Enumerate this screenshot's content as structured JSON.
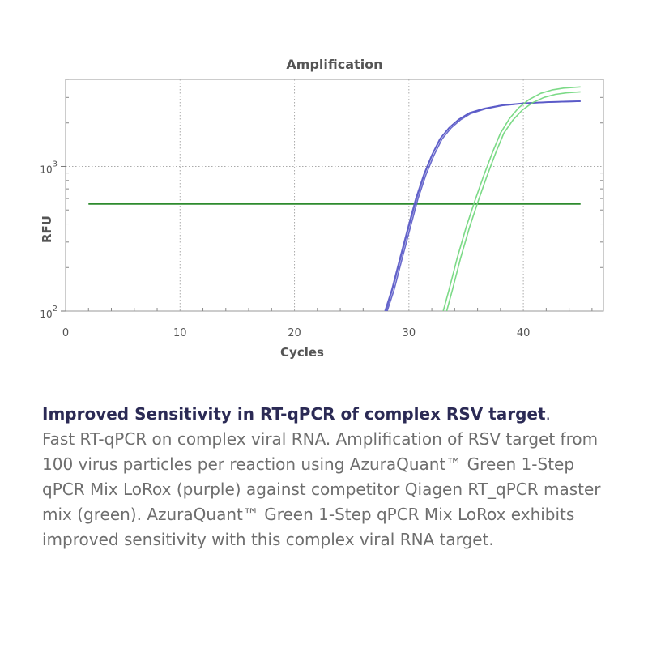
{
  "chart_data": {
    "type": "line",
    "title": "Amplification",
    "xlabel": "Cycles",
    "ylabel": "RFU",
    "xlim": [
      0,
      47
    ],
    "ylim": [
      100,
      4000
    ],
    "yscale": "log",
    "x_ticks": [
      0,
      10,
      20,
      30,
      40
    ],
    "y_ticks": [
      {
        "base": "10",
        "exp": "2",
        "value": 100
      },
      {
        "base": "10",
        "exp": "3",
        "value": 1000
      }
    ],
    "grid": true,
    "threshold": {
      "value": 550,
      "x_start": 2,
      "x_end": 45,
      "color": "#2e8b2e"
    },
    "series_colors": {
      "purple": "#5a5ac8",
      "green": "#6ed67a"
    },
    "series": [
      {
        "group": "purple",
        "points": [
          [
            27.9,
            100
          ],
          [
            28.5,
            140
          ],
          [
            29.2,
            230
          ],
          [
            30.0,
            400
          ],
          [
            30.6,
            600
          ],
          [
            31.3,
            880
          ],
          [
            32.0,
            1200
          ],
          [
            32.7,
            1550
          ],
          [
            33.5,
            1850
          ],
          [
            34.3,
            2100
          ],
          [
            35.2,
            2320
          ],
          [
            36.5,
            2500
          ],
          [
            38.0,
            2640
          ],
          [
            40.0,
            2730
          ],
          [
            42.0,
            2780
          ],
          [
            44.0,
            2810
          ],
          [
            45.0,
            2820
          ]
        ]
      },
      {
        "group": "purple",
        "points": [
          [
            28.1,
            100
          ],
          [
            28.7,
            140
          ],
          [
            29.4,
            230
          ],
          [
            30.2,
            400
          ],
          [
            30.8,
            600
          ],
          [
            31.5,
            880
          ],
          [
            32.2,
            1200
          ],
          [
            32.9,
            1550
          ],
          [
            33.7,
            1850
          ],
          [
            34.5,
            2100
          ],
          [
            35.4,
            2320
          ],
          [
            36.7,
            2500
          ],
          [
            38.2,
            2640
          ],
          [
            40.2,
            2730
          ],
          [
            42.2,
            2780
          ],
          [
            44.0,
            2810
          ],
          [
            45.0,
            2820
          ]
        ]
      },
      {
        "group": "purple",
        "points": [
          [
            28.0,
            100
          ],
          [
            28.6,
            145
          ],
          [
            29.3,
            235
          ],
          [
            30.1,
            410
          ],
          [
            30.7,
            610
          ],
          [
            31.4,
            900
          ],
          [
            32.1,
            1230
          ],
          [
            32.8,
            1580
          ],
          [
            33.6,
            1880
          ],
          [
            34.4,
            2130
          ],
          [
            35.3,
            2350
          ],
          [
            36.6,
            2520
          ],
          [
            38.1,
            2650
          ],
          [
            40.1,
            2740
          ],
          [
            42.1,
            2790
          ],
          [
            44.0,
            2820
          ],
          [
            45.0,
            2830
          ]
        ]
      },
      {
        "group": "green",
        "points": [
          [
            33.0,
            100
          ],
          [
            33.5,
            140
          ],
          [
            34.2,
            230
          ],
          [
            35.0,
            380
          ],
          [
            35.7,
            560
          ],
          [
            36.5,
            850
          ],
          [
            37.3,
            1250
          ],
          [
            38.0,
            1700
          ],
          [
            38.8,
            2150
          ],
          [
            39.6,
            2550
          ],
          [
            40.5,
            2900
          ],
          [
            41.5,
            3200
          ],
          [
            42.5,
            3380
          ],
          [
            43.5,
            3480
          ],
          [
            45.0,
            3550
          ]
        ]
      },
      {
        "group": "green",
        "points": [
          [
            33.3,
            100
          ],
          [
            33.8,
            140
          ],
          [
            34.5,
            230
          ],
          [
            35.3,
            380
          ],
          [
            36.0,
            560
          ],
          [
            36.8,
            850
          ],
          [
            37.6,
            1250
          ],
          [
            38.3,
            1700
          ],
          [
            39.1,
            2100
          ],
          [
            39.9,
            2450
          ],
          [
            40.8,
            2760
          ],
          [
            41.8,
            3000
          ],
          [
            42.8,
            3150
          ],
          [
            43.8,
            3230
          ],
          [
            45.0,
            3280
          ]
        ]
      }
    ]
  },
  "caption": {
    "heading": "Improved Sensitivity in RT-qPCR of complex RSV target",
    "heading_period": ".",
    "body": "Fast RT-qPCR on complex viral RNA. Amplification of RSV target from 100 virus particles per reaction using AzuraQuant™ Green 1-Step qPCR Mix LoRox (purple) against competitor Qiagen RT_qPCR master mix (green). AzuraQuant™ Green 1-Step qPCR Mix LoRox exhibits improved sensitivity with this complex viral RNA target."
  }
}
